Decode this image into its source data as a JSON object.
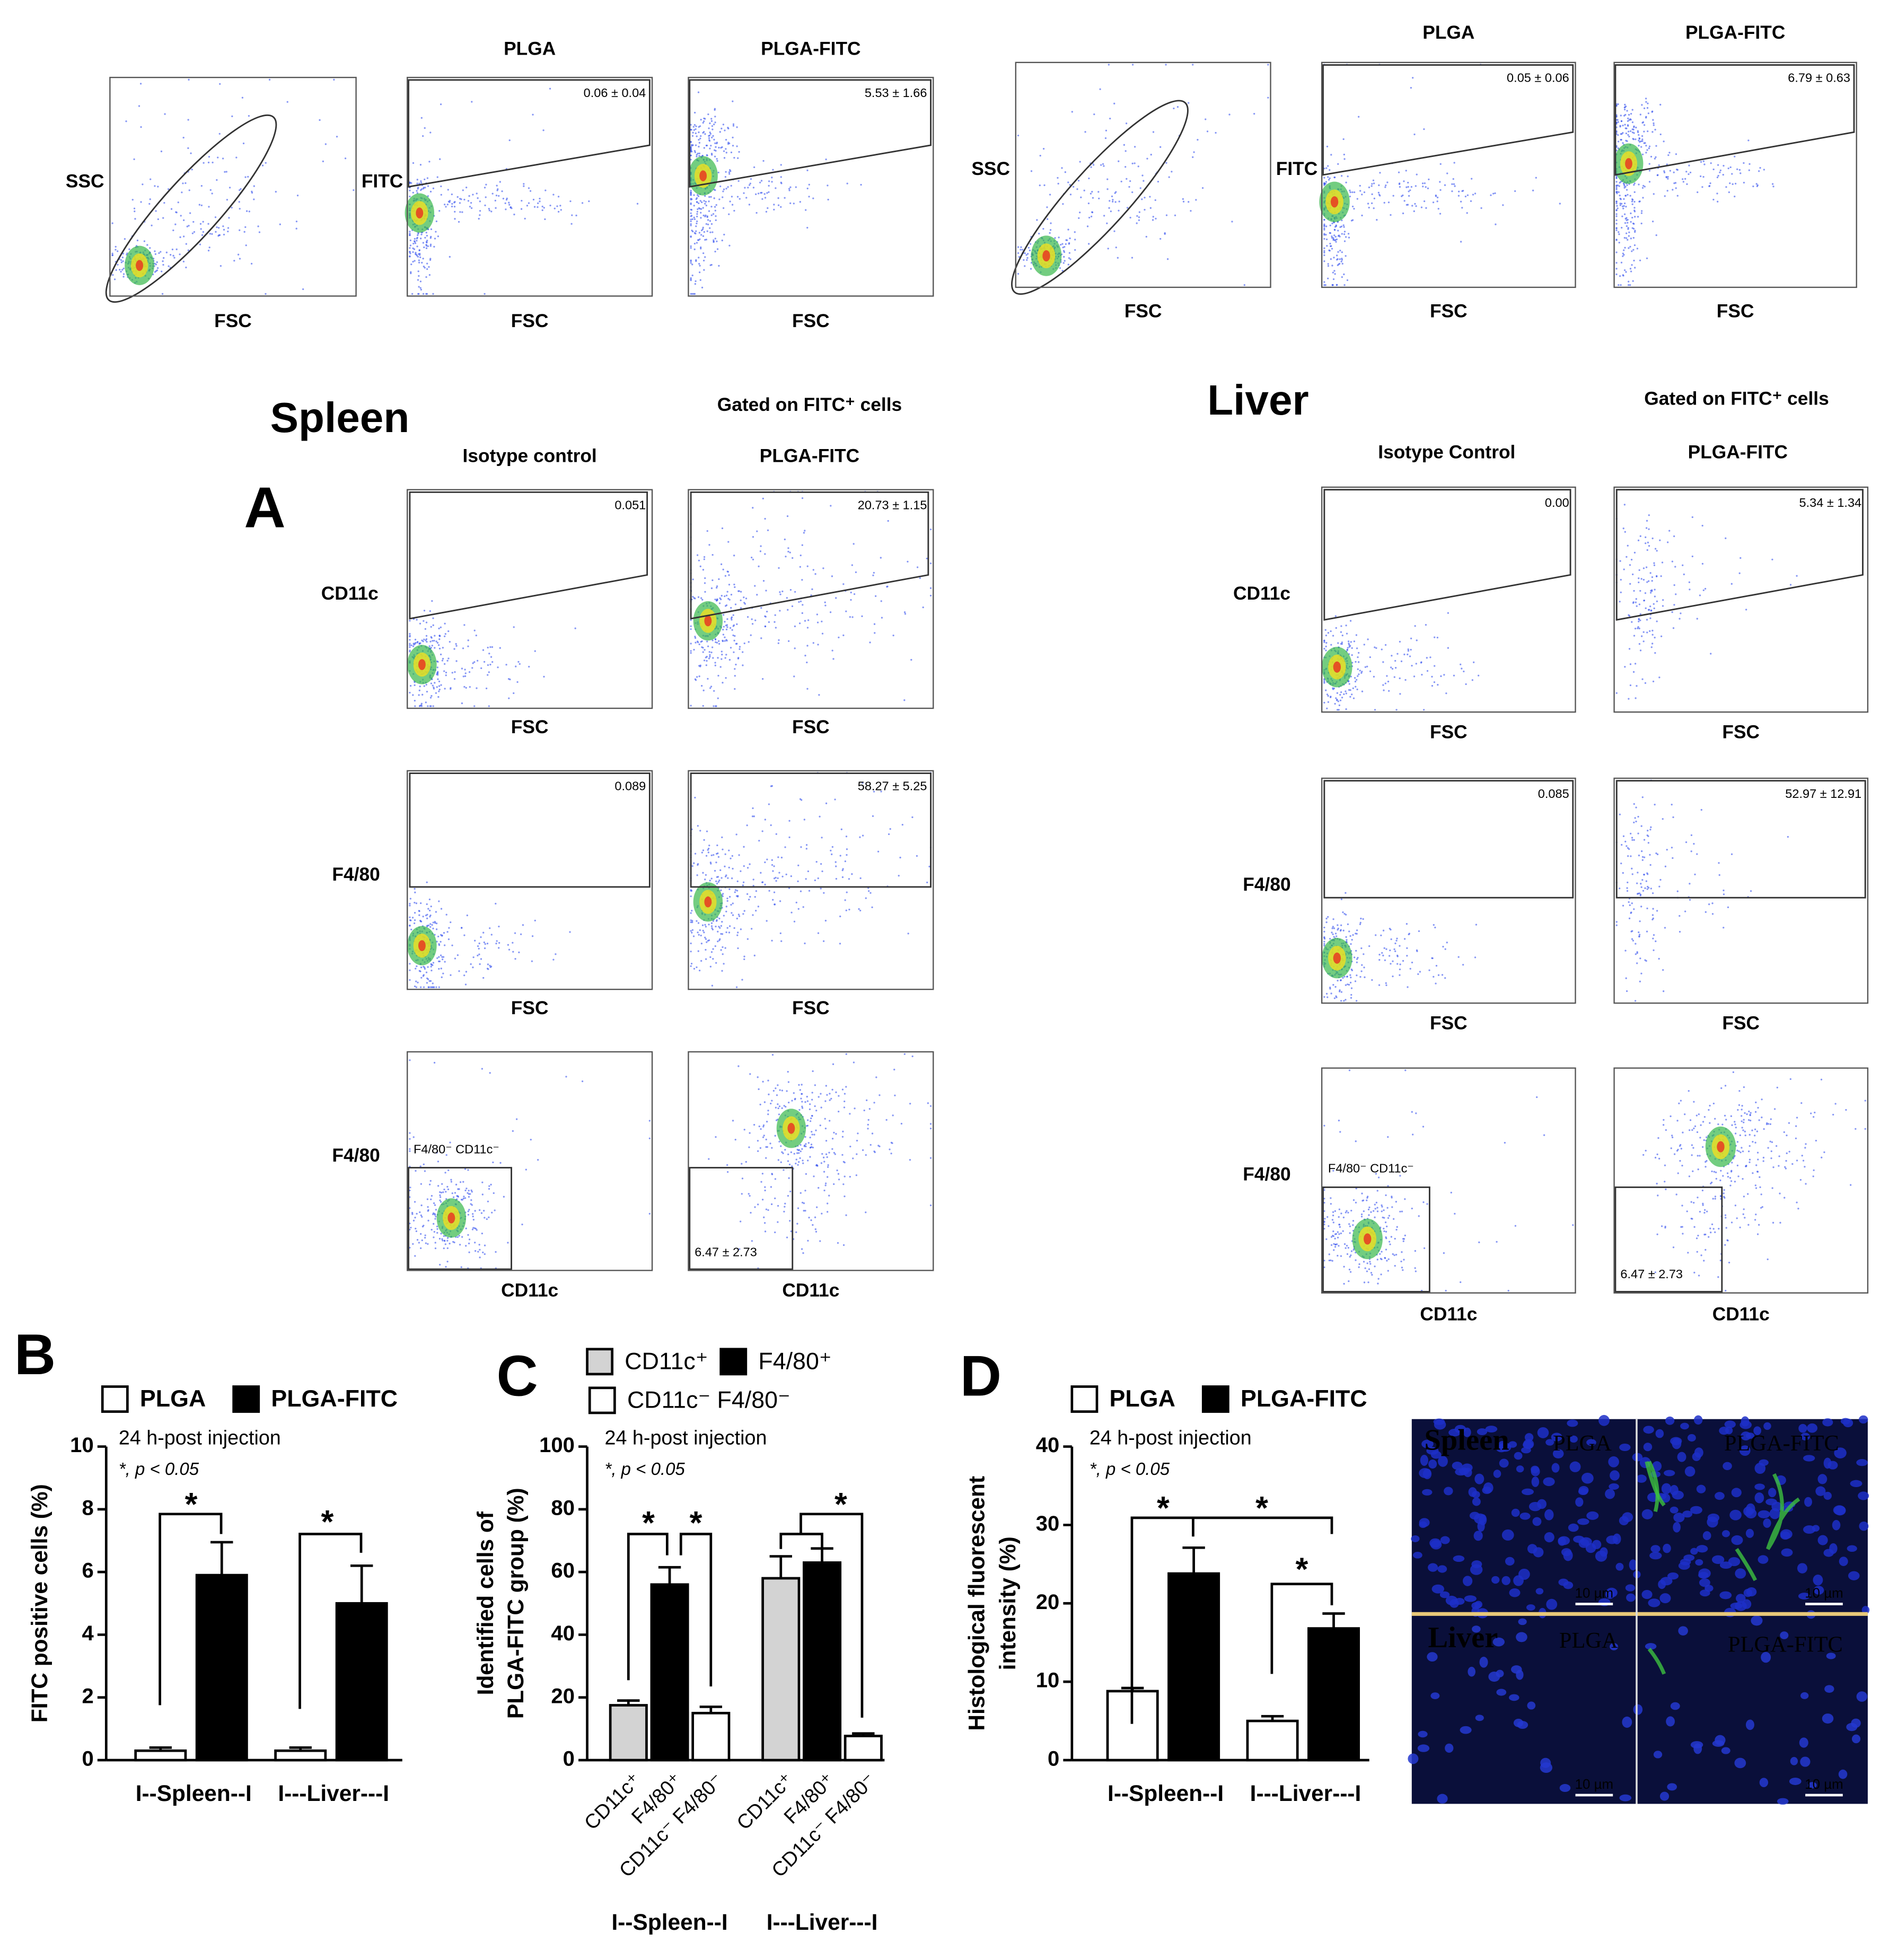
{
  "panel_a": {
    "label": "A",
    "spleen": {
      "name": "Spleen",
      "gated_header": "Gated on FITC⁺ cells",
      "top_row": [
        {
          "y_label": "SSC",
          "x_label": "FSC"
        },
        {
          "title": "PLGA",
          "y_label": "FITC",
          "x_label": "FSC",
          "gate": "0.06 ± 0.04"
        },
        {
          "title": "PLGA-FITC",
          "x_label": "FSC",
          "gate": "5.53 ± 1.66"
        }
      ],
      "columns": [
        "Isotype control",
        "PLGA-FITC"
      ],
      "rows": [
        {
          "y_label": "CD11c",
          "x_labels": [
            "FSC",
            "FSC"
          ],
          "gates": [
            "0.051",
            "20.73 ± 1.15"
          ]
        },
        {
          "y_label": "F4/80",
          "x_labels": [
            "FSC",
            "FSC"
          ],
          "gates": [
            "0.089",
            "58.27 ± 5.25"
          ]
        },
        {
          "y_label": "F4/80",
          "x_labels": [
            "CD11c",
            "CD11c"
          ],
          "gates": [
            "F4/80⁻ CD11c⁻",
            "6.47 ± 2.73"
          ]
        }
      ]
    },
    "liver": {
      "name": "Liver",
      "gated_header": "Gated on FITC⁺ cells",
      "top_row": [
        {
          "y_label": "SSC",
          "x_label": "FSC"
        },
        {
          "title": "PLGA",
          "y_label": "FITC",
          "x_label": "FSC",
          "gate": "0.05 ± 0.06"
        },
        {
          "title": "PLGA-FITC",
          "x_label": "FSC",
          "gate": "6.79 ± 0.63"
        }
      ],
      "columns": [
        "Isotype Control",
        "PLGA-FITC"
      ],
      "rows": [
        {
          "y_label": "CD11c",
          "x_labels": [
            "FSC",
            "FSC"
          ],
          "gates": [
            "0.00",
            "5.34 ± 1.34"
          ]
        },
        {
          "y_label": "F4/80",
          "x_labels": [
            "FSC",
            "FSC"
          ],
          "gates": [
            "0.085",
            "52.97 ± 12.91"
          ]
        },
        {
          "y_label": "F4/80",
          "x_labels": [
            "CD11c",
            "CD11c"
          ],
          "gates": [
            "F4/80⁻ CD11c⁻",
            "6.47 ± 2.73"
          ]
        }
      ]
    }
  },
  "chart_data": [
    {
      "type": "bar",
      "panel_label": "B",
      "y_label": [
        "FITC positive cells (%)"
      ],
      "annotations": [
        "24 h-post injection",
        "*, p < 0.05"
      ],
      "categories": [
        "I--Spleen--I",
        "I---Liver---I"
      ],
      "series": [
        {
          "name": "PLGA",
          "color": "#ffffff",
          "values": [
            0.3,
            0.3
          ],
          "errors": [
            0.1,
            0.1
          ]
        },
        {
          "name": "PLGA-FITC",
          "color": "#000000",
          "values": [
            5.9,
            5.0
          ],
          "errors": [
            1.05,
            1.2
          ]
        }
      ],
      "ylim": [
        0,
        10
      ],
      "yticks": [
        0,
        2,
        4,
        6,
        8,
        10
      ],
      "significance": [
        "*",
        "*"
      ]
    },
    {
      "type": "bar",
      "panel_label": "C",
      "y_label": [
        "Identified cells of",
        "PLGA-FITC group (%)"
      ],
      "annotations": [
        "24 h-post injection",
        "*, p < 0.05"
      ],
      "categories": [
        "I--Spleen--I",
        "I---Liver---I"
      ],
      "series": [
        {
          "name": "CD11c⁺",
          "color": "#d3d3d3",
          "values": [
            17.5,
            58
          ],
          "errors": [
            1.5,
            7
          ]
        },
        {
          "name": "F4/80⁺",
          "color": "#000000",
          "values": [
            56,
            63
          ],
          "errors": [
            5.5,
            4.5
          ]
        },
        {
          "name": "CD11c⁻ F4/80⁻",
          "color": "#ffffff",
          "values": [
            15,
            7.7
          ],
          "errors": [
            2,
            0.8
          ]
        }
      ],
      "ylim": [
        0,
        100
      ],
      "yticks": [
        0,
        20,
        40,
        60,
        80,
        100
      ],
      "significance": [
        "*",
        "*",
        "*"
      ]
    },
    {
      "type": "bar",
      "panel_label": "D",
      "y_label": [
        "Histological fluorescent",
        "intensity (%)"
      ],
      "annotations": [
        "24 h-post injection",
        "*, p < 0.05"
      ],
      "categories": [
        "I--Spleen--I",
        "I---Liver---I"
      ],
      "series": [
        {
          "name": "PLGA",
          "color": "#ffffff",
          "values": [
            8.8,
            5.0
          ],
          "errors": [
            0.4,
            0.6
          ]
        },
        {
          "name": "PLGA-FITC",
          "color": "#000000",
          "values": [
            23.8,
            16.8
          ],
          "errors": [
            3.3,
            1.9
          ]
        }
      ],
      "ylim": [
        0,
        40
      ],
      "yticks": [
        0,
        10,
        20,
        30,
        40
      ],
      "significance": [
        "*",
        "*",
        "*"
      ]
    }
  ],
  "panel_d_images": {
    "rows": [
      {
        "tissue": "Spleen",
        "columns": [
          "PLGA",
          "PLGA-FITC"
        ]
      },
      {
        "tissue": "Liver",
        "columns": [
          "PLGA",
          "PLGA-FITC"
        ]
      }
    ],
    "scale_bars": [
      "10 µm",
      "10 µm",
      "10 µm",
      "10 µm"
    ]
  }
}
